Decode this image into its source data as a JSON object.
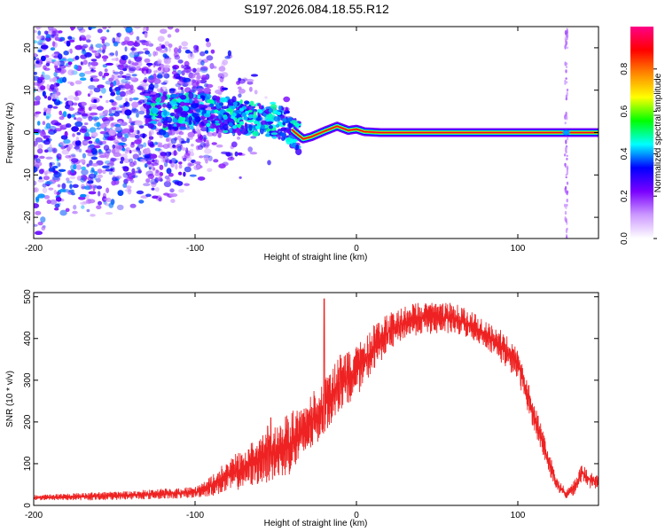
{
  "title": "S197.2026.084.18.55.R12",
  "colors": {
    "axis": "#000000",
    "snr_line": "#ee2222",
    "background": "#ffffff"
  },
  "chart_data": [
    {
      "type": "heatmap",
      "name": "spectrogram",
      "xlabel": "Height of straight line (km)",
      "ylabel": "Frequency (Hz)",
      "xlim": [
        -200,
        150
      ],
      "ylim": [
        -25,
        25
      ],
      "x_ticks": [
        -200,
        -100,
        0,
        100
      ],
      "x_tick_labels": [
        "-200",
        "-100",
        "0",
        "100"
      ],
      "y_ticks": [
        -20,
        -10,
        0,
        10,
        20
      ],
      "y_tick_labels": [
        "-20",
        "-10",
        "0",
        "10",
        "20"
      ],
      "colorbar": {
        "label": "Normalized spectral amplitude",
        "range": [
          0,
          1
        ],
        "ticks": [
          0.0,
          0.2,
          0.4,
          0.6,
          0.8
        ],
        "tick_labels": [
          "0.0",
          "0.2",
          "0.4",
          "0.6",
          "0.8"
        ],
        "colormap": [
          "#ffffff",
          "#cc99ff",
          "#7a00ff",
          "#0000ff",
          "#00ffff",
          "#00ff00",
          "#ffff00",
          "#ff8800",
          "#ff0000",
          "#ff0088"
        ]
      },
      "ridge": {
        "description_points": [
          [
            -130,
            5
          ],
          [
            -100,
            5
          ],
          [
            -80,
            4
          ],
          [
            -60,
            3.5
          ],
          [
            -45,
            2.5
          ],
          [
            -38,
            0
          ],
          [
            -33,
            -1.5
          ],
          [
            -28,
            -1
          ],
          [
            -20,
            0.3
          ],
          [
            -12,
            1.5
          ],
          [
            -5,
            0.5
          ],
          [
            0,
            0.8
          ],
          [
            5,
            0.2
          ],
          [
            15,
            0
          ],
          [
            150,
            0
          ]
        ],
        "line_x_range": [
          -20,
          150
        ],
        "strong_peak_x": 130
      }
    },
    {
      "type": "line",
      "name": "snr",
      "xlabel": "Height of straight line (km)",
      "ylabel": "SNR (10 * v/v)",
      "xlim": [
        -200,
        150
      ],
      "ylim": [
        0,
        510
      ],
      "x_ticks": [
        -200,
        -100,
        0,
        100
      ],
      "x_tick_labels": [
        "-200",
        "-100",
        "0",
        "100"
      ],
      "y_ticks": [
        0,
        100,
        200,
        300,
        400,
        500
      ],
      "y_tick_labels": [
        "0",
        "100",
        "200",
        "300",
        "400",
        "500"
      ],
      "envelope": {
        "x": [
          -200,
          -180,
          -160,
          -140,
          -120,
          -100,
          -90,
          -80,
          -70,
          -60,
          -50,
          -40,
          -30,
          -20,
          -10,
          0,
          10,
          20,
          30,
          40,
          50,
          60,
          70,
          80,
          90,
          100,
          110,
          120,
          125,
          130,
          135,
          140,
          145,
          150
        ],
        "low": [
          12,
          12,
          12,
          14,
          15,
          18,
          22,
          30,
          40,
          50,
          60,
          75,
          120,
          170,
          230,
          260,
          320,
          370,
          400,
          410,
          410,
          410,
          400,
          380,
          340,
          300,
          180,
          70,
          30,
          15,
          25,
          60,
          40,
          40
        ],
        "high": [
          25,
          28,
          32,
          35,
          40,
          45,
          70,
          110,
          140,
          170,
          190,
          230,
          260,
          300,
          360,
          380,
          430,
          460,
          480,
          490,
          490,
          485,
          470,
          440,
          420,
          380,
          250,
          120,
          60,
          40,
          60,
          100,
          80,
          75
        ]
      },
      "spikes": [
        [
          -55,
          190
        ],
        [
          -53,
          210
        ],
        [
          -33,
          220
        ],
        [
          -20,
          495
        ],
        [
          -10,
          360
        ]
      ]
    }
  ]
}
